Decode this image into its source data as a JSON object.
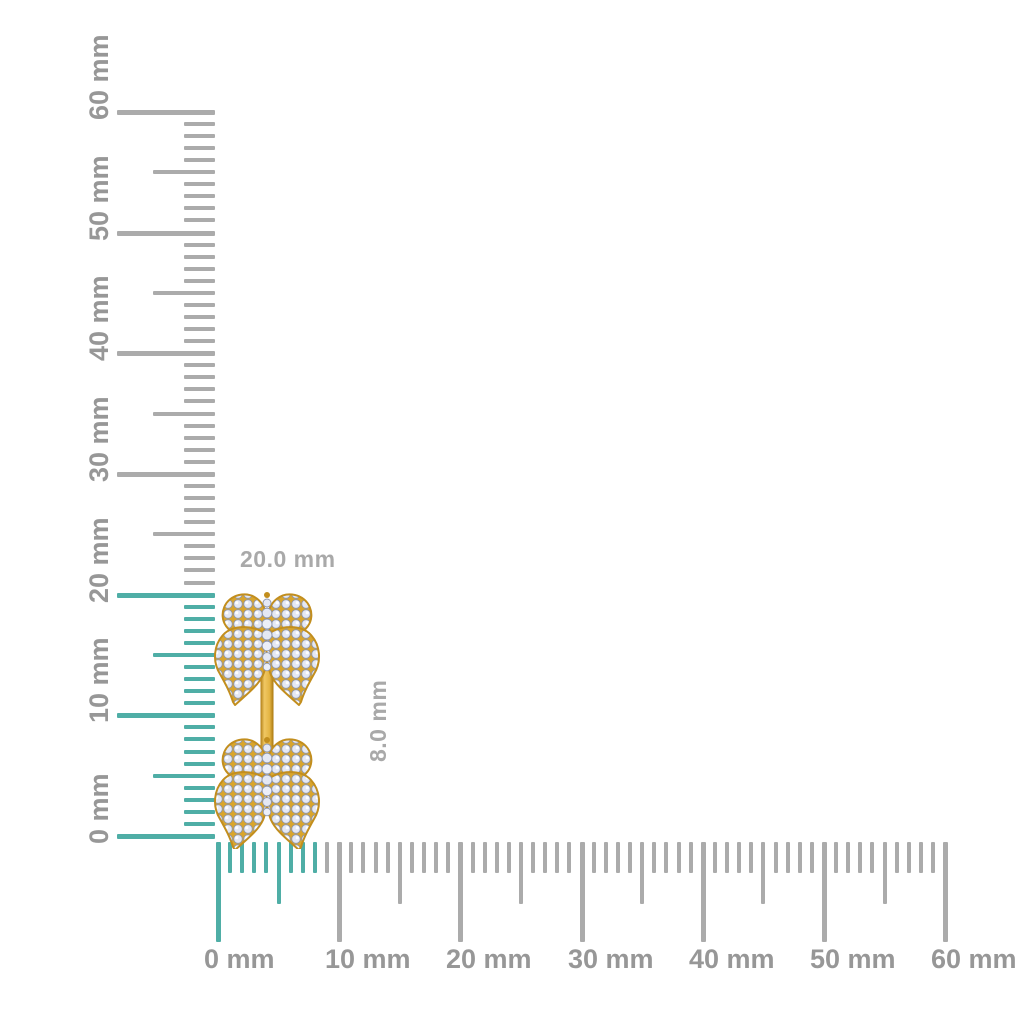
{
  "colors": {
    "background": "#ffffff",
    "tick_gray": "#ababab",
    "tick_highlight_teal": "#4faea6",
    "ruler_label_gray": "#979797",
    "annotation_gray": "#a9a9a9",
    "gold": "#d9a52c",
    "gold_light": "#f0c763",
    "gold_dark": "#b07d15",
    "gold_edge": "#c28e1e",
    "diamond_fill": "#e4e8f4",
    "diamond_edge": "#8e96ac"
  },
  "vertical_ruler": {
    "unit": "mm",
    "min_mm": 0,
    "max_mm": 60,
    "major_step_mm": 10,
    "medium_step_mm": 5,
    "minor_step_mm": 1,
    "major_labels": [
      "0 mm",
      "10 mm",
      "20 mm",
      "30 mm",
      "40 mm",
      "50 mm",
      "60 mm"
    ],
    "highlight_from_mm": 0,
    "highlight_to_mm": 20
  },
  "horizontal_ruler": {
    "unit": "mm",
    "min_mm": 0,
    "max_mm": 60,
    "major_step_mm": 10,
    "medium_step_mm": 5,
    "minor_step_mm": 1,
    "major_labels": [
      "0 mm",
      "10 mm",
      "20 mm",
      "30 mm",
      "40 mm",
      "50 mm",
      "60 mm"
    ],
    "highlight_from_mm": 0,
    "highlight_to_mm": 8
  },
  "annotations": {
    "height_label": "20.0 mm",
    "width_label": "8.0 mm"
  },
  "product": {
    "name": "pave-diamond-double-butterfly-gold-earring"
  }
}
